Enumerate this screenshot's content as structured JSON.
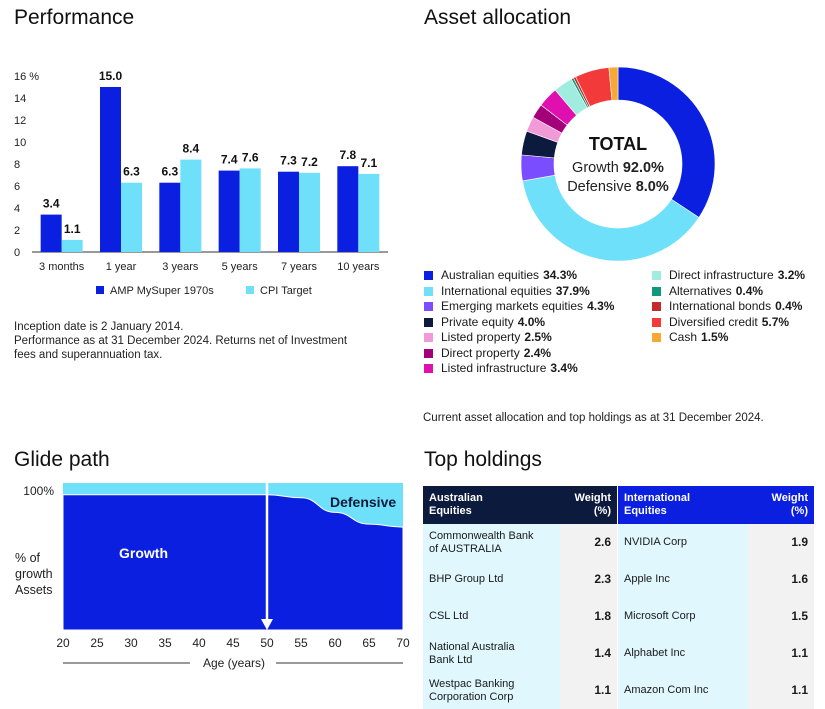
{
  "performance": {
    "title": "Performance",
    "notes": [
      "Inception date is 2 January 2014.",
      "Performance as at 31 December 2024. Returns net of Investment",
      "fees and superannuation tax."
    ]
  },
  "asset_allocation": {
    "title": "Asset allocation",
    "center": {
      "title": "TOTAL",
      "growth_label": "Growth",
      "growth_value": "92.0%",
      "defensive_label": "Defensive",
      "defensive_value": "8.0%"
    },
    "footnote": "Current asset allocation and top holdings as at 31 December 2024."
  },
  "glide_path": {
    "title": "Glide path",
    "y_top_label": "100%",
    "y_axis_label": [
      "% of",
      "growth",
      "Assets"
    ],
    "growth_label": "Growth",
    "defensive_label": "Defensive",
    "x_ticks": [
      "20",
      "25",
      "30",
      "35",
      "40",
      "45",
      "50",
      "55",
      "60",
      "65",
      "70"
    ],
    "x_label": "Age (years)",
    "current_age": 50
  },
  "top_holdings": {
    "title": "Top holdings",
    "australian": {
      "header": [
        "Australian",
        "Equities"
      ],
      "weight_header": [
        "Weight",
        "(%)"
      ],
      "rows": [
        {
          "name": [
            "Commonwealth Bank",
            "of AUSTRALIA"
          ],
          "weight": "2.6"
        },
        {
          "name": [
            "BHP Group Ltd"
          ],
          "weight": "2.3"
        },
        {
          "name": [
            "CSL Ltd"
          ],
          "weight": "1.8"
        },
        {
          "name": [
            "National Australia",
            "Bank Ltd"
          ],
          "weight": "1.4"
        },
        {
          "name": [
            "Westpac Banking",
            "Corporation Corp"
          ],
          "weight": "1.1"
        }
      ]
    },
    "international": {
      "header": [
        "International",
        "Equities"
      ],
      "weight_header": [
        "Weight",
        "(%)"
      ],
      "rows": [
        {
          "name": [
            "NVIDIA Corp"
          ],
          "weight": "1.9"
        },
        {
          "name": [
            "Apple Inc"
          ],
          "weight": "1.6"
        },
        {
          "name": [
            "Microsoft Corp"
          ],
          "weight": "1.5"
        },
        {
          "name": [
            "Alphabet Inc"
          ],
          "weight": "1.1"
        },
        {
          "name": [
            "Amazon Com Inc"
          ],
          "weight": "1.1"
        }
      ]
    }
  },
  "chart_data": [
    {
      "type": "bar",
      "title": "Performance",
      "categories": [
        "3 months",
        "1 year",
        "3 years",
        "5 years",
        "7 years",
        "10 years"
      ],
      "series": [
        {
          "name": "AMP MySuper 1970s",
          "color": "#0a1fe0",
          "values": [
            3.4,
            15.0,
            6.3,
            7.4,
            7.3,
            7.8
          ]
        },
        {
          "name": "CPI Target",
          "color": "#6fe0fa",
          "values": [
            1.1,
            6.3,
            8.4,
            7.6,
            7.2,
            7.1
          ]
        }
      ],
      "ylim": [
        0,
        16
      ],
      "yticks": [
        0,
        2,
        4,
        6,
        8,
        10,
        12,
        14,
        16
      ],
      "ytick_top_label": "16 %",
      "legend": "bottom"
    },
    {
      "type": "pie",
      "title": "Asset allocation",
      "donut": true,
      "slices": [
        {
          "label": "Australian equities",
          "value": 34.3,
          "color": "#0a1fe0"
        },
        {
          "label": "International equities",
          "value": 37.9,
          "color": "#6fe0fa"
        },
        {
          "label": "Emerging markets equities",
          "value": 4.3,
          "color": "#7a4dff"
        },
        {
          "label": "Private equity",
          "value": 4.0,
          "color": "#0c1b3d"
        },
        {
          "label": "Listed property",
          "value": 2.5,
          "color": "#f29ad8"
        },
        {
          "label": "Direct property",
          "value": 2.4,
          "color": "#a3007a"
        },
        {
          "label": "Listed infrastructure",
          "value": 3.4,
          "color": "#e010b0"
        },
        {
          "label": "Direct infrastructure",
          "value": 3.2,
          "color": "#a0ecdf"
        },
        {
          "label": "Alternatives",
          "value": 0.4,
          "color": "#0e9a7a"
        },
        {
          "label": "International bonds",
          "value": 0.4,
          "color": "#c42a2a"
        },
        {
          "label": "Diversified credit",
          "value": 5.7,
          "color": "#f23a3a"
        },
        {
          "label": "Cash",
          "value": 1.5,
          "color": "#f7a935"
        }
      ],
      "legend": "bottom"
    },
    {
      "type": "area",
      "title": "Glide path",
      "x": [
        20,
        25,
        30,
        35,
        40,
        45,
        50,
        55,
        60,
        65,
        70
      ],
      "series": [
        {
          "name": "Growth",
          "color": "#0a1fe0",
          "values": [
            92,
            92,
            92,
            92,
            92,
            92,
            92,
            90,
            80,
            72,
            70
          ]
        },
        {
          "name": "Defensive",
          "color": "#6fe0fa",
          "values": [
            8,
            8,
            8,
            8,
            8,
            8,
            8,
            10,
            20,
            28,
            30
          ]
        }
      ],
      "xlabel": "Age (years)",
      "ylabel": "% of growth Assets",
      "ylim": [
        0,
        100
      ]
    }
  ]
}
